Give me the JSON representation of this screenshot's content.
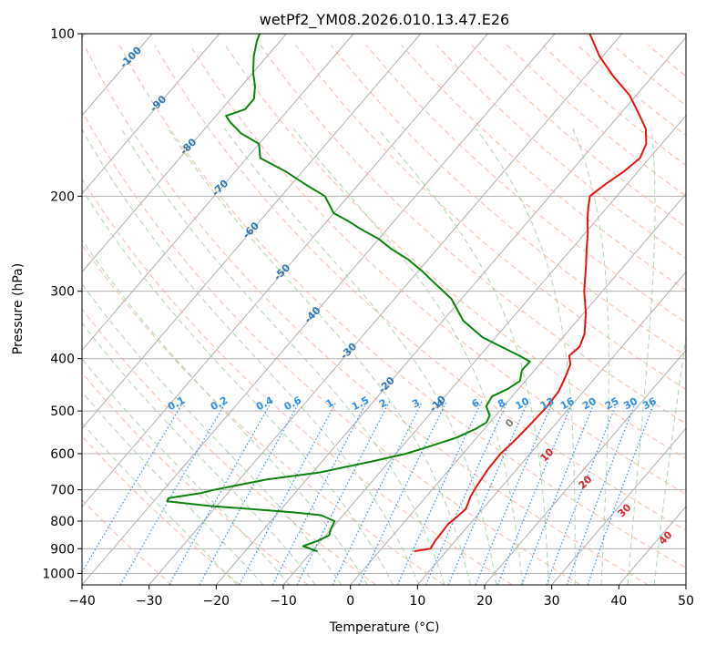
{
  "chart_data": {
    "type": "line",
    "subtype": "skew-t log-p diagram",
    "title": "wetPf2_YM08.2026.010.13.47.E26",
    "xlabel": "Temperature (°C)",
    "ylabel": "Pressure (hPa)",
    "xlim": [
      -40,
      50
    ],
    "ylim": [
      1050,
      100
    ],
    "y_scale": "log",
    "x_ticks": [
      "−40",
      "−30",
      "−20",
      "−10",
      "0",
      "10",
      "20",
      "30",
      "40",
      "50"
    ],
    "y_ticks": [
      "100",
      "200",
      "300",
      "400",
      "500",
      "600",
      "700",
      "800",
      "900",
      "1000"
    ],
    "grid": true,
    "colors": {
      "temperature": "#e8110f",
      "dewpoint": "#0d800d",
      "isotherm_label": "#2b76b6",
      "mixing_ratio": "#2e8fe6",
      "dry_adiabat": "#f4a58a",
      "moist_adiabat": "#9fd19f",
      "moist_label": "#d9232a"
    },
    "series": [
      {
        "role": "temperature",
        "points": [
          [
            910,
            5.2
          ],
          [
            900,
            7.3
          ],
          [
            870,
            7.0
          ],
          [
            840,
            6.9
          ],
          [
            810,
            6.8
          ],
          [
            790,
            7.1
          ],
          [
            760,
            7.5
          ],
          [
            720,
            6.6
          ],
          [
            690,
            6.2
          ],
          [
            640,
            5.7
          ],
          [
            600,
            5.6
          ],
          [
            570,
            6.0
          ],
          [
            530,
            6.3
          ],
          [
            490,
            6.5
          ],
          [
            460,
            6.3
          ],
          [
            440,
            5.7
          ],
          [
            410,
            4.6
          ],
          [
            395,
            3.3
          ],
          [
            380,
            3.7
          ],
          [
            360,
            2.8
          ],
          [
            330,
            0.4
          ],
          [
            300,
            -2.7
          ],
          [
            270,
            -5.6
          ],
          [
            250,
            -7.8
          ],
          [
            235,
            -9.5
          ],
          [
            220,
            -11.5
          ],
          [
            210,
            -12.8
          ],
          [
            200,
            -14.0
          ],
          [
            190,
            -13.2
          ],
          [
            180,
            -12.1
          ],
          [
            170,
            -11.4
          ],
          [
            160,
            -12.3
          ],
          [
            150,
            -14.3
          ],
          [
            140,
            -17.5
          ],
          [
            130,
            -21.0
          ],
          [
            120,
            -25.8
          ],
          [
            110,
            -30.5
          ],
          [
            100,
            -34.8
          ]
        ]
      },
      {
        "role": "dewpoint",
        "points": [
          [
            910,
            -9.2
          ],
          [
            890,
            -12.0
          ],
          [
            870,
            -10.5
          ],
          [
            850,
            -9.5
          ],
          [
            830,
            -10.0
          ],
          [
            800,
            -10.5
          ],
          [
            780,
            -13.3
          ],
          [
            770,
            -18.0
          ],
          [
            750,
            -31.0
          ],
          [
            735,
            -38.0
          ],
          [
            725,
            -38.2
          ],
          [
            710,
            -34.0
          ],
          [
            700,
            -32.5
          ],
          [
            670,
            -26.0
          ],
          [
            650,
            -19.0
          ],
          [
            620,
            -12.5
          ],
          [
            600,
            -8.5
          ],
          [
            580,
            -5.7
          ],
          [
            560,
            -3.0
          ],
          [
            540,
            -1.3
          ],
          [
            525,
            -0.5
          ],
          [
            510,
            -0.9
          ],
          [
            490,
            -2.6
          ],
          [
            470,
            -3.0
          ],
          [
            455,
            -1.6
          ],
          [
            440,
            -0.8
          ],
          [
            420,
            -1.9
          ],
          [
            405,
            -1.8
          ],
          [
            395,
            -4.1
          ],
          [
            380,
            -8.0
          ],
          [
            365,
            -12.0
          ],
          [
            340,
            -17.0
          ],
          [
            310,
            -21.5
          ],
          [
            290,
            -26.0
          ],
          [
            275,
            -29.5
          ],
          [
            262,
            -33.0
          ],
          [
            250,
            -37.0
          ],
          [
            240,
            -40.0
          ],
          [
            230,
            -44.0
          ],
          [
            222,
            -47.0
          ],
          [
            215,
            -50.0
          ],
          [
            200,
            -53.5
          ],
          [
            190,
            -58.0
          ],
          [
            180,
            -62.5
          ],
          [
            170,
            -68.0
          ],
          [
            160,
            -70.0
          ],
          [
            153,
            -74.0
          ],
          [
            146,
            -77.0
          ],
          [
            142,
            -78.5
          ],
          [
            138,
            -76.5
          ],
          [
            132,
            -76.5
          ],
          [
            125,
            -78.0
          ],
          [
            118,
            -80.0
          ],
          [
            110,
            -82.0
          ],
          [
            103,
            -83.5
          ],
          [
            100,
            -84.0
          ]
        ]
      }
    ],
    "isotherm_labels": [
      "-100",
      "-90",
      "-80",
      "-70",
      "-60",
      "-50",
      "-40",
      "-30",
      "-20",
      "-10"
    ],
    "mixing_ratio_labels": [
      "0.1",
      "0.2",
      "0.4",
      "0.6",
      "1",
      "1.5",
      "2",
      "3",
      "4",
      "6",
      "8",
      "10",
      "13",
      "16",
      "20",
      "25",
      "30",
      "36"
    ],
    "moist_adiabat_labels": [
      "0",
      "10",
      "20",
      "30",
      "40"
    ]
  }
}
